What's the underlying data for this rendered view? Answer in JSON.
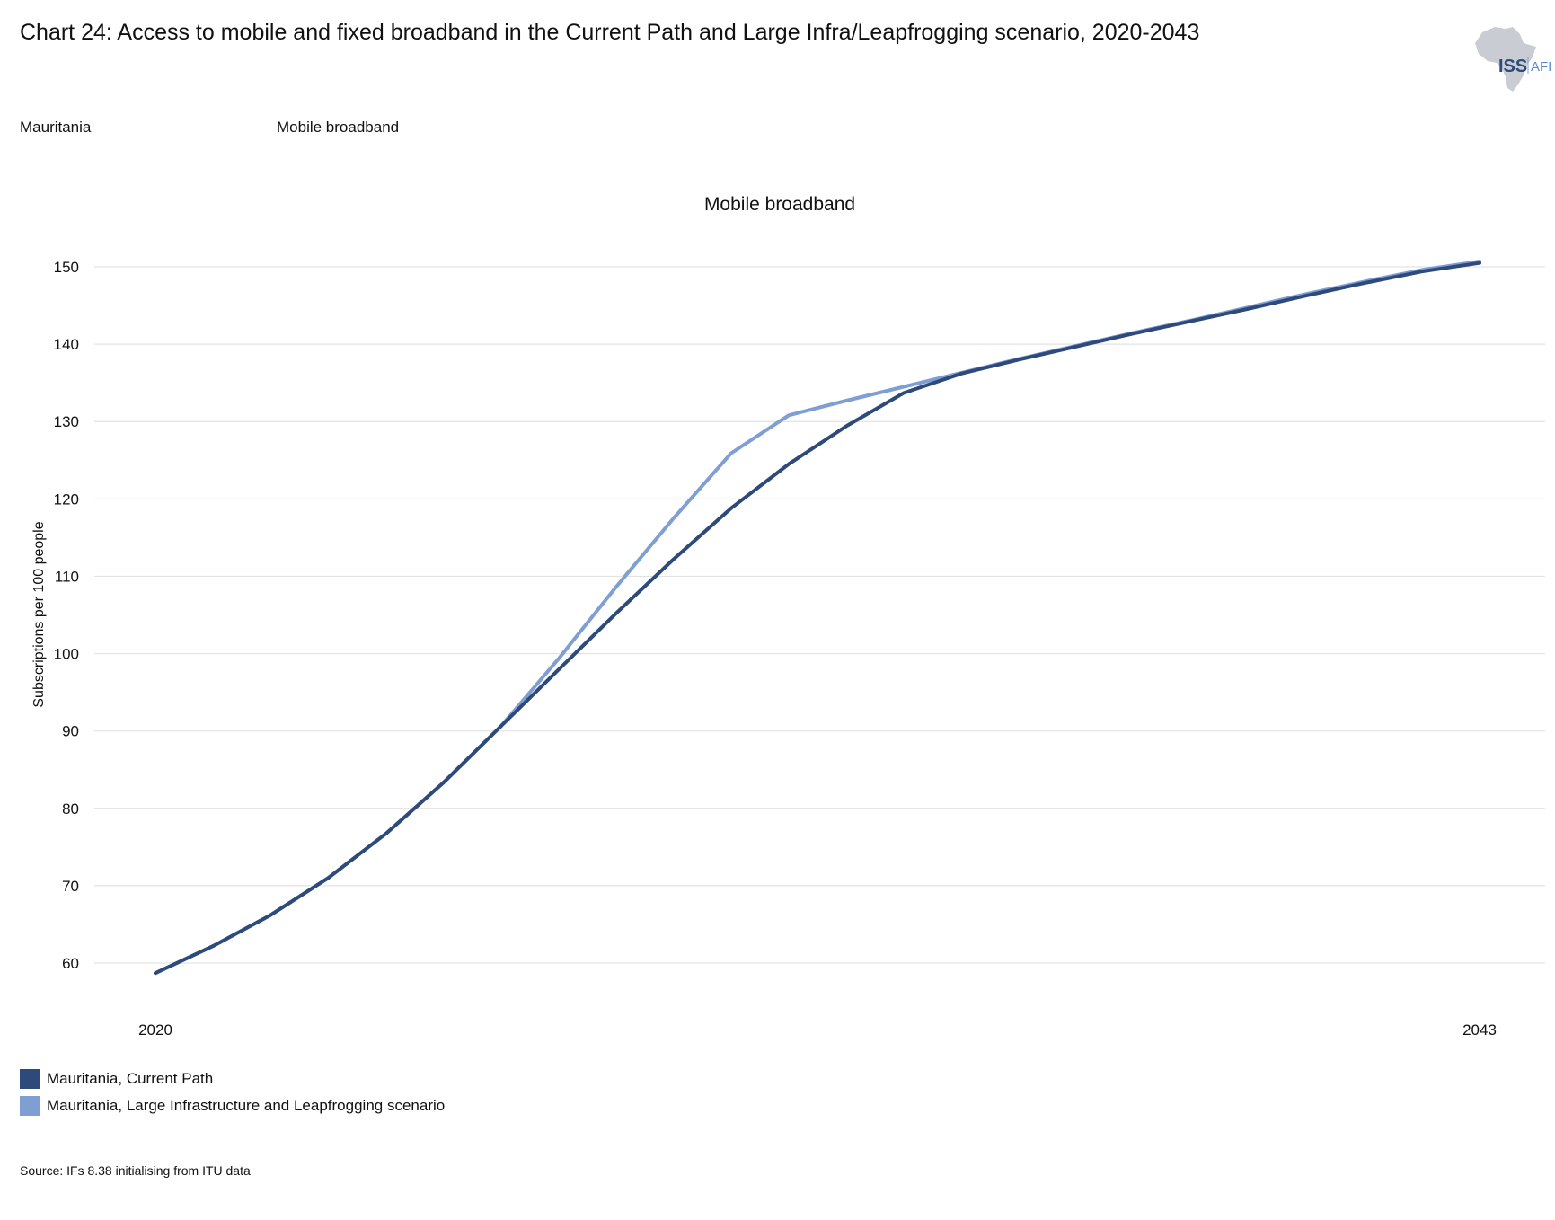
{
  "header": {
    "title": "Chart 24: Access to mobile and fixed broadband in the Current Path and Large Infra/Leapfrogging scenario, 2020-2043",
    "filters": {
      "country": "Mauritania",
      "indicator": "Mobile broadband"
    },
    "logo": {
      "primary": "ISS",
      "secondary": "AFI"
    }
  },
  "source": "Source: IFs 8.38 initialising from ITU data",
  "colors": {
    "current_path": "#2d4a7a",
    "scenario": "#7f9fd4",
    "grid": "#e3e3e3"
  },
  "chart_data": {
    "type": "line",
    "title": "Mobile broadband",
    "xlabel": "",
    "ylabel": "Subscriptions per 100 people",
    "x": [
      2020,
      2021,
      2022,
      2023,
      2024,
      2025,
      2026,
      2027,
      2028,
      2029,
      2030,
      2031,
      2032,
      2033,
      2034,
      2035,
      2036,
      2037,
      2038,
      2039,
      2040,
      2041,
      2042,
      2043
    ],
    "x_tick_labels": [
      "2020",
      "2043"
    ],
    "y_ticks": [
      60,
      70,
      80,
      90,
      100,
      110,
      120,
      130,
      140,
      150
    ],
    "ylim": [
      54,
      156
    ],
    "grid": true,
    "legend_position": "bottom-left",
    "series": [
      {
        "name": "Mauritania, Current Path",
        "color": "#2d4a7a",
        "values": [
          58.7,
          62.2,
          66.2,
          71.0,
          76.7,
          83.3,
          90.6,
          97.9,
          105.2,
          112.2,
          118.8,
          124.5,
          129.4,
          133.7,
          136.2,
          138.0,
          139.7,
          141.4,
          143.0,
          144.6,
          146.3,
          147.9,
          149.4,
          150.5
        ]
      },
      {
        "name": "Mauritania, Large Infrastructure and Leapfrogging scenario",
        "color": "#7f9fd4",
        "values": [
          58.7,
          62.2,
          66.2,
          71.0,
          76.7,
          83.3,
          90.6,
          99.3,
          108.6,
          117.5,
          125.9,
          130.8,
          132.7,
          134.5,
          136.3,
          138.1,
          139.8,
          141.5,
          143.1,
          144.8,
          146.5,
          148.1,
          149.6,
          150.7
        ]
      }
    ]
  }
}
